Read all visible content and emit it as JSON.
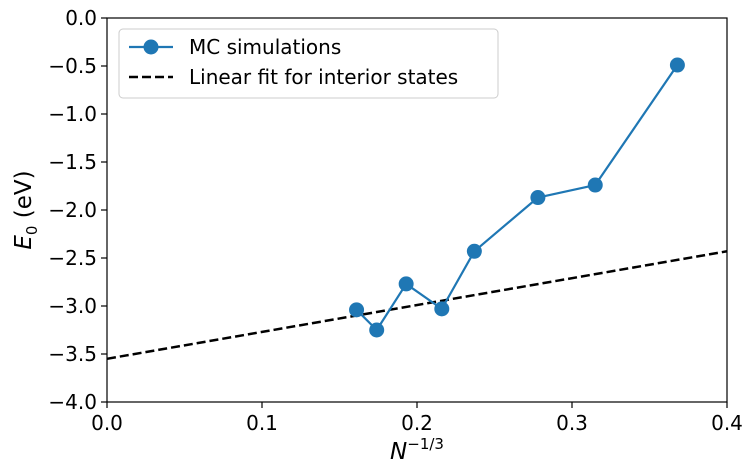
{
  "chart_data": {
    "type": "line",
    "title": "",
    "xlabel": {
      "base": "N",
      "sup": "−1/3"
    },
    "ylabel": {
      "base": "E",
      "sub": "0",
      "rest": " (eV)"
    },
    "xlim": [
      0.0,
      0.4
    ],
    "ylim": [
      -4.0,
      0.0
    ],
    "xticks": [
      0.0,
      0.1,
      0.2,
      0.3,
      0.4
    ],
    "xtick_labels": [
      "0.0",
      "0.1",
      "0.2",
      "0.3",
      "0.4"
    ],
    "yticks": [
      0.0,
      -0.5,
      -1.0,
      -1.5,
      -2.0,
      -2.5,
      -3.0,
      -3.5,
      -4.0
    ],
    "ytick_labels": [
      "0.0",
      "−0.5",
      "−1.0",
      "−1.5",
      "−2.0",
      "−2.5",
      "−3.0",
      "−3.5",
      "−4.0"
    ],
    "grid": false,
    "legend_position": "upper-left",
    "series": [
      {
        "name": "MC simulations",
        "style": "solid-line-with-circle-markers",
        "color": "#1f77b4",
        "x": [
          0.161,
          0.174,
          0.193,
          0.216,
          0.237,
          0.278,
          0.315,
          0.368
        ],
        "y": [
          -3.04,
          -3.25,
          -2.77,
          -3.03,
          -2.43,
          -1.87,
          -1.74,
          -0.49
        ]
      },
      {
        "name": "Linear fit for interior states",
        "style": "dashed-line",
        "color": "#000000",
        "x": [
          0.0,
          0.4
        ],
        "y": [
          -3.55,
          -2.43
        ]
      }
    ]
  }
}
